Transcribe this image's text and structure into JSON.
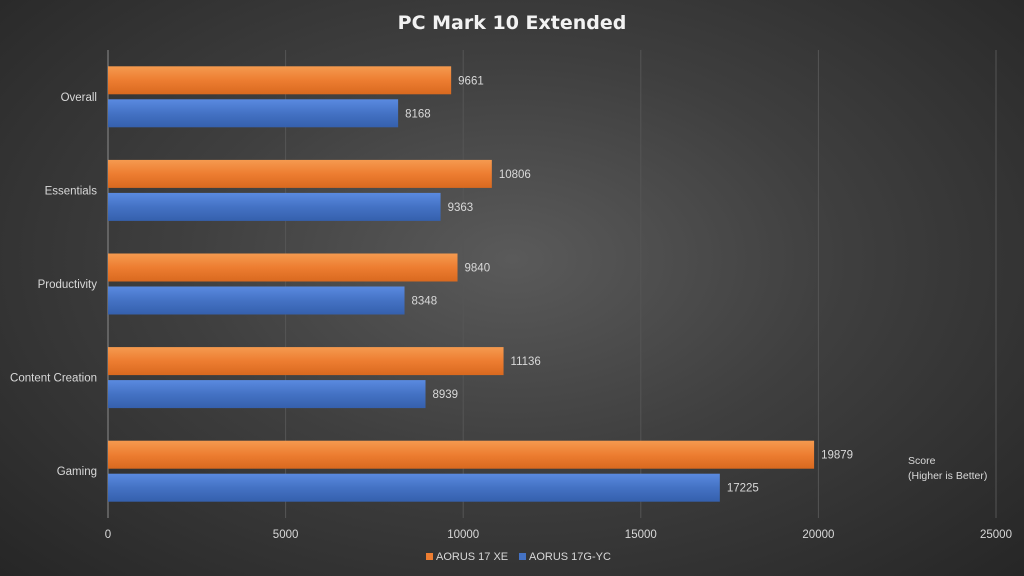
{
  "chart_data": {
    "type": "bar",
    "orientation": "horizontal",
    "title": "PC Mark 10 Extended",
    "categories": [
      "Overall",
      "Essentials",
      "Productivity",
      "Content Creation",
      "Gaming"
    ],
    "series": [
      {
        "name": "AORUS 17 XE",
        "color": "#ed7d31",
        "values": [
          9661,
          10806,
          9840,
          11136,
          19879
        ]
      },
      {
        "name": "AORUS 17G-YC",
        "color": "#4472c4",
        "values": [
          8168,
          9363,
          8348,
          8939,
          17225
        ]
      }
    ],
    "xlim": [
      0,
      25000
    ],
    "xticks": [
      0,
      5000,
      10000,
      15000,
      20000,
      25000
    ],
    "axis_note": [
      "Score",
      "(Higher is Better)"
    ],
    "legend_position": "bottom",
    "grid": true
  }
}
